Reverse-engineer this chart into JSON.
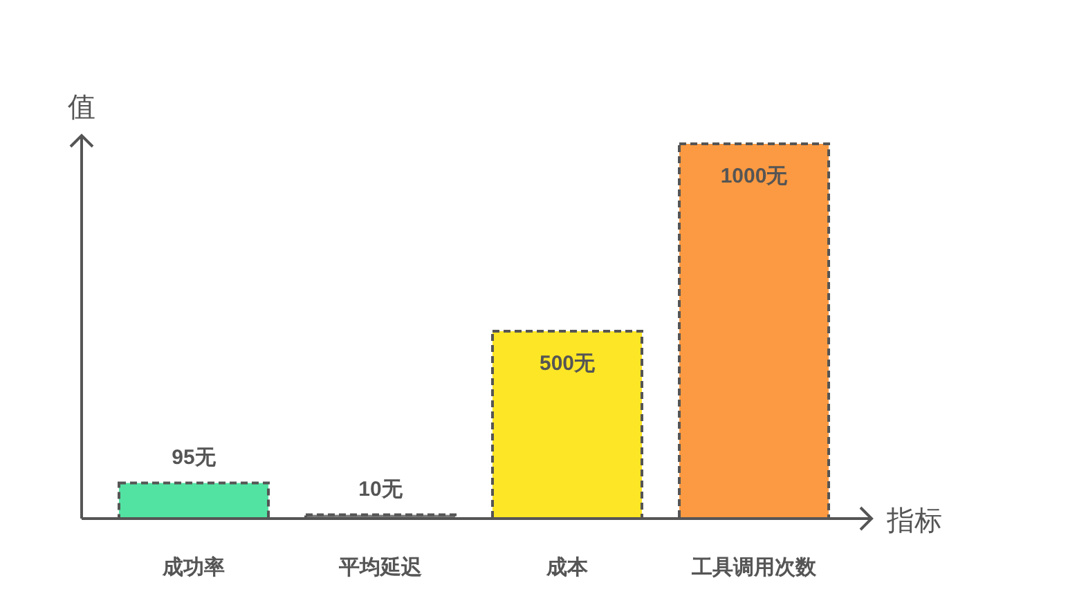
{
  "chart_data": {
    "type": "bar",
    "xlabel": "指标",
    "ylabel": "值",
    "categories": [
      "成功率",
      "平均延迟",
      "成本",
      "工具调用次数"
    ],
    "values": [
      95,
      10,
      500,
      1000
    ],
    "colors": [
      "#52e3a2",
      "#7a7a7a",
      "#fde625",
      "#fb9a42"
    ],
    "value_labels": [
      "95无",
      "10无",
      "500无",
      "1000无"
    ]
  }
}
